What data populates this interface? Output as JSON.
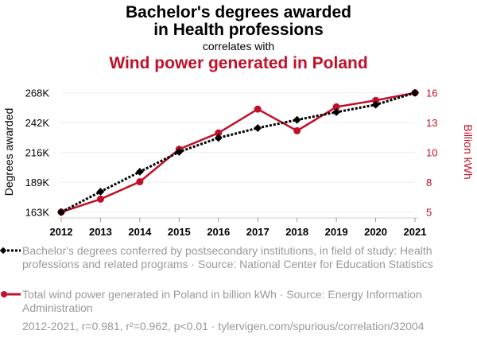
{
  "title_line1": "Bachelor's degrees awarded",
  "title_line2": "in Health professions",
  "correlates_with": "correlates with",
  "title2": "Wind power generated in Poland",
  "colors": {
    "series1": "#000000",
    "series2": "#c0102a",
    "grid": "#eeeeee",
    "muted": "#999999"
  },
  "chart_data": {
    "type": "line",
    "x": [
      2012,
      2013,
      2014,
      2015,
      2016,
      2017,
      2018,
      2019,
      2020,
      2021
    ],
    "x_tick_labels": [
      "2012",
      "2013",
      "2014",
      "2015",
      "2016",
      "2017",
      "2018",
      "2019",
      "2020",
      "2021"
    ],
    "ylabel_left": "Degrees awarded",
    "ylabel_right": "Billion kWh",
    "ylim_left": [
      163000,
      268000
    ],
    "ylim_right": [
      5,
      16
    ],
    "left_tick_labels": [
      "163K",
      "189K",
      "216K",
      "242K",
      "268K"
    ],
    "right_tick_labels": [
      "5",
      "8",
      "10",
      "13",
      "16"
    ],
    "grid": true,
    "series": [
      {
        "axis": "left",
        "marker": "diamond",
        "style": "dotted",
        "values": [
          163000,
          181000,
          198500,
          216000,
          228300,
          237000,
          244200,
          251000,
          257500,
          268000
        ]
      },
      {
        "axis": "right",
        "marker": "circle",
        "style": "solid",
        "values": [
          5,
          6.2,
          7.8,
          10.8,
          12.3,
          14.5,
          12.5,
          14.7,
          15.3,
          16
        ]
      }
    ]
  },
  "legend": [
    {
      "text": "Bachelor's degrees conferred by postsecondary institutions, in field of study: Health professions and related programs · Source: National Center for Education Statistics"
    },
    {
      "text": "Total wind power generated in Poland in billion kWh · Source: Energy Information Administration"
    }
  ],
  "footer": "2012-2021, r=0.981, r²=0.962, p<0.01 · tylervigen.com/spurious/correlation/32004"
}
